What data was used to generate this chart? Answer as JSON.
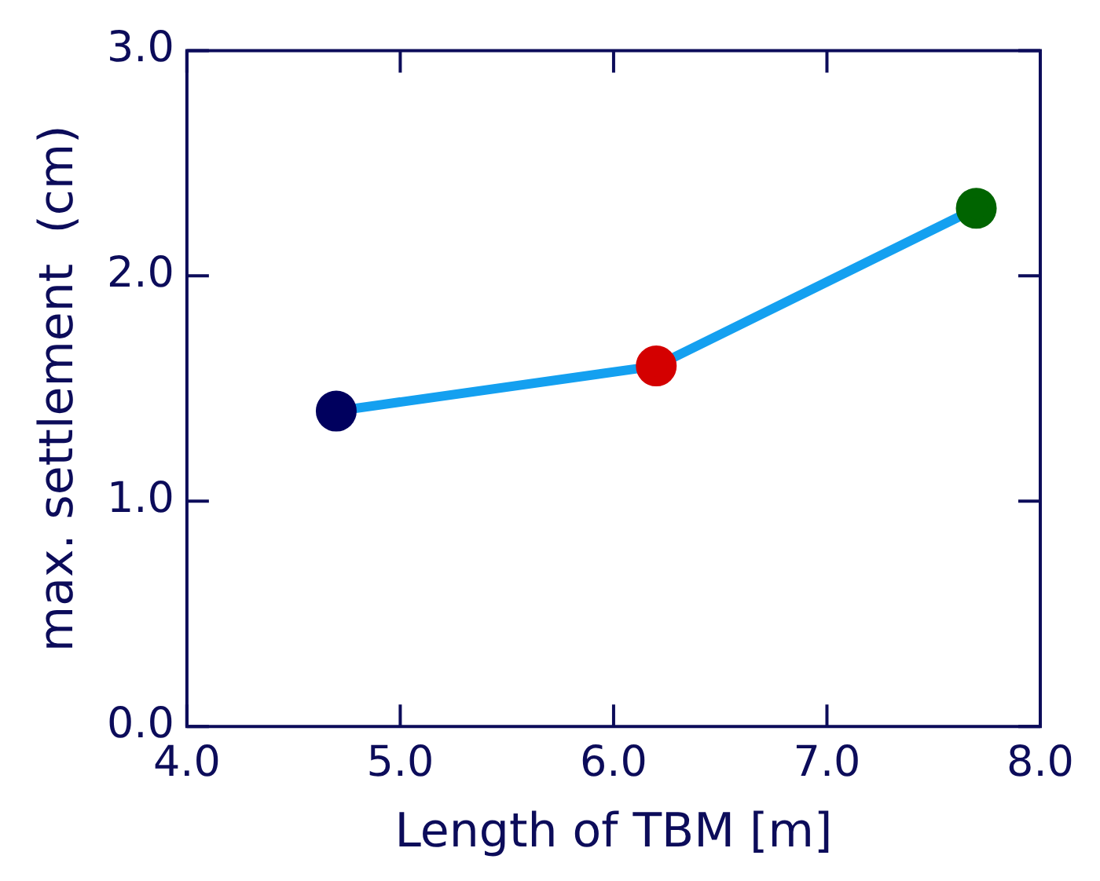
{
  "chart_data": {
    "type": "line",
    "xlabel": "Length of TBM [m]",
    "ylabel": "max. settlement  (cm)",
    "x": [
      4.7,
      6.2,
      7.7
    ],
    "series": [
      {
        "color": "#14a0f0",
        "colors": [
          "#00005e",
          "#d40000",
          "#006400"
        ],
        "values": [
          1.4,
          1.6,
          2.3
        ]
      }
    ],
    "xlim": [
      4.0,
      8.0
    ],
    "xticks": [
      {
        "value": 4,
        "label": "4.0"
      },
      {
        "value": 5,
        "label": "5.0"
      },
      {
        "value": 6,
        "label": "6.0"
      },
      {
        "value": 7,
        "label": "7.0"
      },
      {
        "value": 8,
        "label": "8.0"
      }
    ],
    "ylim": [
      0.0,
      3.0
    ],
    "yticks": [
      {
        "value": 0,
        "label": "0.0"
      },
      {
        "value": 1,
        "label": "1.0"
      },
      {
        "value": 2,
        "label": "2.0"
      },
      {
        "value": 3,
        "label": "3.0"
      }
    ],
    "grid": false,
    "legend": false,
    "marker": "circle",
    "line_style": "solid"
  }
}
